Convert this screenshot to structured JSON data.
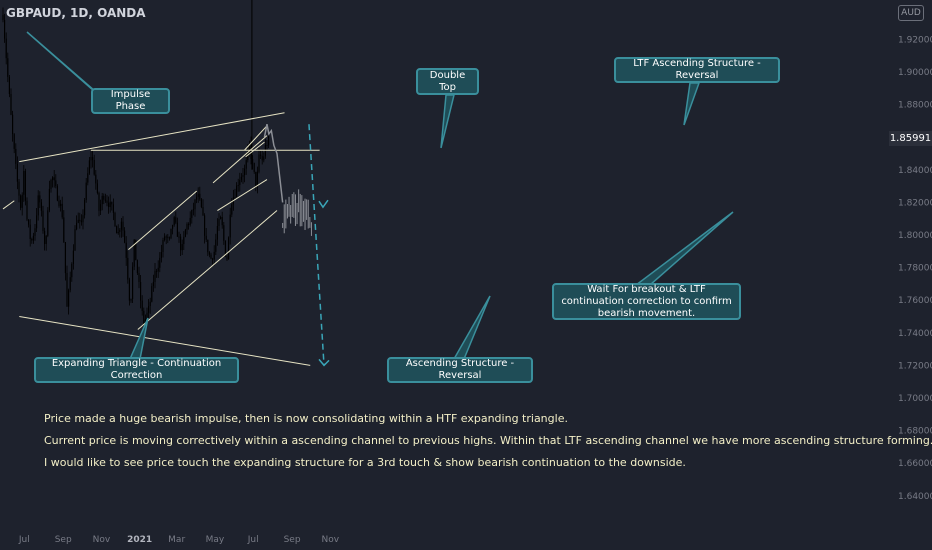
{
  "header": {
    "symbol": "GBPAUD, 1D, OANDA",
    "currency_button": "AUD"
  },
  "current_price": "1.85991",
  "chart_data": {
    "type": "candlestick",
    "title": "GBPAUD, 1D, OANDA",
    "ylim": [
      1.62,
      1.94
    ],
    "y_ticks": [
      "1.92000",
      "1.90000",
      "1.88000",
      "1.84000",
      "1.82000",
      "1.80000",
      "1.78000",
      "1.76000",
      "1.74000",
      "1.72000",
      "1.70000",
      "1.68000",
      "1.66000",
      "1.64000"
    ],
    "x_ticks": [
      "Jul",
      "Sep",
      "Nov",
      "2021",
      "Mar",
      "May",
      "Jul",
      "Sep",
      "Nov"
    ],
    "grid": false,
    "price_path": [
      {
        "date": "2020-05-28",
        "close": 1.935
      },
      {
        "date": "2020-06-05",
        "close": 1.895
      },
      {
        "date": "2020-06-12",
        "close": 1.862
      },
      {
        "date": "2020-06-19",
        "close": 1.835
      },
      {
        "date": "2020-06-26",
        "close": 1.815
      },
      {
        "date": "2020-06-30",
        "close": 1.84
      },
      {
        "date": "2020-07-05",
        "close": 1.81
      },
      {
        "date": "2020-07-12",
        "close": 1.795
      },
      {
        "date": "2020-07-18",
        "close": 1.805
      },
      {
        "date": "2020-07-24",
        "close": 1.825
      },
      {
        "date": "2020-07-29",
        "close": 1.81
      },
      {
        "date": "2020-08-04",
        "close": 1.79
      },
      {
        "date": "2020-08-09",
        "close": 1.83
      },
      {
        "date": "2020-08-15",
        "close": 1.835
      },
      {
        "date": "2020-08-22",
        "close": 1.825
      },
      {
        "date": "2020-08-30",
        "close": 1.815
      },
      {
        "date": "2020-09-03",
        "close": 1.79
      },
      {
        "date": "2020-09-07",
        "close": 1.755
      },
      {
        "date": "2020-09-10",
        "close": 1.765
      },
      {
        "date": "2020-09-15",
        "close": 1.785
      },
      {
        "date": "2020-09-22",
        "close": 1.81
      },
      {
        "date": "2020-09-30",
        "close": 1.805
      },
      {
        "date": "2020-10-06",
        "close": 1.825
      },
      {
        "date": "2020-10-13",
        "close": 1.845
      },
      {
        "date": "2020-10-16",
        "close": 1.85
      },
      {
        "date": "2020-10-22",
        "close": 1.835
      },
      {
        "date": "2020-10-28",
        "close": 1.815
      },
      {
        "date": "2020-11-04",
        "close": 1.825
      },
      {
        "date": "2020-11-12",
        "close": 1.82
      },
      {
        "date": "2020-11-19",
        "close": 1.815
      },
      {
        "date": "2020-11-27",
        "close": 1.8
      },
      {
        "date": "2020-12-03",
        "close": 1.81
      },
      {
        "date": "2020-12-10",
        "close": 1.79
      },
      {
        "date": "2020-12-17",
        "close": 1.755
      },
      {
        "date": "2020-12-23",
        "close": 1.795
      },
      {
        "date": "2021-01-01",
        "close": 1.765
      },
      {
        "date": "2021-01-07",
        "close": 1.745
      },
      {
        "date": "2021-01-16",
        "close": 1.755
      },
      {
        "date": "2021-01-24",
        "close": 1.775
      },
      {
        "date": "2021-02-02",
        "close": 1.785
      },
      {
        "date": "2021-02-10",
        "close": 1.8
      },
      {
        "date": "2021-02-17",
        "close": 1.795
      },
      {
        "date": "2021-02-24",
        "close": 1.81
      },
      {
        "date": "2021-03-03",
        "close": 1.8
      },
      {
        "date": "2021-03-09",
        "close": 1.79
      },
      {
        "date": "2021-03-16",
        "close": 1.805
      },
      {
        "date": "2021-03-23",
        "close": 1.81
      },
      {
        "date": "2021-04-03",
        "close": 1.825
      },
      {
        "date": "2021-04-10",
        "close": 1.815
      },
      {
        "date": "2021-04-17",
        "close": 1.795
      },
      {
        "date": "2021-04-24",
        "close": 1.785
      },
      {
        "date": "2021-04-30",
        "close": 1.79
      },
      {
        "date": "2021-05-05",
        "close": 1.805
      },
      {
        "date": "2021-05-11",
        "close": 1.81
      },
      {
        "date": "2021-05-17",
        "close": 1.79
      },
      {
        "date": "2021-05-21",
        "close": 1.785
      },
      {
        "date": "2021-05-26",
        "close": 1.82
      },
      {
        "date": "2021-06-01",
        "close": 1.825
      },
      {
        "date": "2021-06-09",
        "close": 1.835
      },
      {
        "date": "2021-06-18",
        "close": 1.84
      },
      {
        "date": "2021-06-25",
        "close": 1.855
      },
      {
        "date": "2021-07-01",
        "close": 1.84
      },
      {
        "date": "2021-07-06",
        "close": 1.83
      },
      {
        "date": "2021-07-11",
        "close": 1.85
      },
      {
        "date": "2021-07-16",
        "close": 1.845
      },
      {
        "date": "2021-07-21",
        "close": 1.855
      },
      {
        "date": "2021-07-28",
        "close": 1.86
      }
    ],
    "drawings": [
      {
        "name": "expanding-triangle-upper",
        "points": [
          {
            "date": "2020-06-23",
            "price": 1.845
          },
          {
            "date": "2021-08-20",
            "price": 1.875
          }
        ]
      },
      {
        "name": "expanding-triangle-lower",
        "points": [
          {
            "date": "2020-06-23",
            "price": 1.75
          },
          {
            "date": "2021-09-30",
            "price": 1.72
          }
        ]
      },
      {
        "name": "double-top-horizontal",
        "points": [
          {
            "date": "2020-10-15",
            "price": 1.852
          },
          {
            "date": "2021-10-15",
            "price": 1.852
          }
        ]
      },
      {
        "name": "ascending-channel-upper",
        "points": [
          {
            "date": "2020-12-14",
            "price": 1.791
          },
          {
            "date": "2021-04-02",
            "price": 1.827
          }
        ]
      },
      {
        "name": "ascending-channel-lower",
        "points": [
          {
            "date": "2020-12-29",
            "price": 1.742
          },
          {
            "date": "2021-08-08",
            "price": 1.815
          }
        ]
      },
      {
        "name": "ltf-channel-upper",
        "points": [
          {
            "date": "2021-04-28",
            "price": 1.832
          },
          {
            "date": "2021-07-23",
            "price": 1.861
          }
        ]
      },
      {
        "name": "ltf-channel-lower",
        "points": [
          {
            "date": "2021-05-05",
            "price": 1.815
          },
          {
            "date": "2021-07-23",
            "price": 1.834
          }
        ]
      },
      {
        "name": "ltf-structure-upper",
        "points": [
          {
            "date": "2021-06-17",
            "price": 1.852
          },
          {
            "date": "2021-07-23",
            "price": 1.867
          }
        ]
      },
      {
        "name": "ltf-structure-lower",
        "points": [
          {
            "date": "2021-06-19",
            "price": 1.848
          },
          {
            "date": "2021-07-19",
            "price": 1.857
          }
        ]
      },
      {
        "name": "edge-trend-left",
        "points": [
          {
            "date": "2020-05-28",
            "price": 1.816
          },
          {
            "date": "2020-06-15",
            "price": 1.821
          }
        ]
      }
    ],
    "projection_path": [
      {
        "date": "2021-07-19",
        "price": 1.86
      },
      {
        "date": "2021-07-23",
        "price": 1.868
      },
      {
        "date": "2021-07-26",
        "price": 1.862
      },
      {
        "date": "2021-07-30",
        "price": 1.864
      },
      {
        "date": "2021-08-03",
        "price": 1.855
      },
      {
        "date": "2021-08-08",
        "price": 1.85
      },
      {
        "date": "2021-08-17",
        "price": 1.82
      }
    ],
    "projected_range": {
      "from": "2021-08-17",
      "to": "2021-10-03",
      "low": 1.785,
      "high": 1.83
    },
    "bearish_target": {
      "from": {
        "date": "2021-09-28",
        "price": 1.868
      },
      "to": {
        "date": "2021-10-22",
        "price": 1.72
      }
    },
    "vertical_marker_date": "2021-06-29"
  },
  "callouts": {
    "impulse": "Impulse Phase",
    "double_top": "Double Top",
    "ltf_ascending": "LTF Ascending Structure - Reversal",
    "expanding_triangle": "Expanding Triangle - Continuation Correction",
    "ascending_structure": "Ascending Structure - Reversal",
    "wait_breakout": "Wait For breakout & LTF continuation correction to confirm bearish movement."
  },
  "notes": [
    "Price made a huge bearish impulse, then is now consolidating within a HTF expanding triangle.",
    "Current price is moving correctively within a ascending channel to previous highs. Within that LTF ascending channel we have more ascending structure forming.",
    "I would like to see price touch the expanding structure for a 3rd touch & show bearish continuation to the downside."
  ],
  "colors": {
    "background": "#1e222d",
    "candles": "#000000",
    "drawing_lines": "#e7e4c4",
    "callout_fill": "#1f4d57",
    "callout_border": "#3a8f9c",
    "projection": "#8c8f96",
    "target_arrow": "#3aa6b8",
    "note_text": "#f3efc7",
    "axis_text": "#787b86"
  }
}
